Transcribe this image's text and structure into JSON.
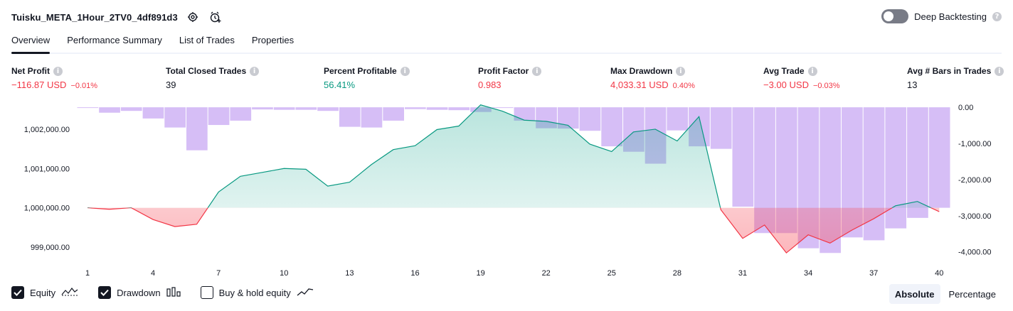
{
  "header": {
    "title": "Tuisku_META_1Hour_2TV0_4df891d3",
    "deep_backtesting_label": "Deep Backtesting",
    "deep_backtesting_enabled": false
  },
  "tabs": [
    {
      "label": "Overview",
      "active": true
    },
    {
      "label": "Performance Summary",
      "active": false
    },
    {
      "label": "List of Trades",
      "active": false
    },
    {
      "label": "Properties",
      "active": false
    }
  ],
  "stats": [
    {
      "label": "Net Profit",
      "value": "−116.87 USD",
      "sub": "−0.01%",
      "color": "#f23645"
    },
    {
      "label": "Total Closed Trades",
      "value": "39",
      "sub": "",
      "color": "#131722"
    },
    {
      "label": "Percent Profitable",
      "value": "56.41%",
      "sub": "",
      "color": "#089981"
    },
    {
      "label": "Profit Factor",
      "value": "0.983",
      "sub": "",
      "color": "#f23645"
    },
    {
      "label": "Max Drawdown",
      "value": "4,033.31 USD",
      "sub": "0.40%",
      "color": "#f23645"
    },
    {
      "label": "Avg Trade",
      "value": "−3.00 USD",
      "sub": "−0.03%",
      "color": "#f23645"
    },
    {
      "label": "Avg # Bars in Trades",
      "value": "13",
      "sub": "",
      "color": "#131722"
    }
  ],
  "chart_data": {
    "type": "area",
    "x_ticks": [
      "1",
      "4",
      "7",
      "10",
      "13",
      "16",
      "19",
      "22",
      "25",
      "28",
      "31",
      "34",
      "37",
      "40"
    ],
    "left_axis": {
      "ticks": [
        "1,002,000.00",
        "1,001,000.00",
        "1,000,000.00",
        "999,000.00"
      ],
      "range": [
        998600,
        1002650
      ]
    },
    "right_axis": {
      "ticks": [
        "0.00",
        "-1,000.00",
        "-2,000.00",
        "-3,000.00",
        "-4,000.00"
      ],
      "range": [
        -4300,
        100
      ]
    },
    "equity_baseline": 1000000,
    "equity": [
      [
        1,
        1000000
      ],
      [
        2,
        999960
      ],
      [
        3,
        1000000
      ],
      [
        4,
        999700
      ],
      [
        5,
        999520
      ],
      [
        6,
        999580
      ],
      [
        7,
        1000400
      ],
      [
        8,
        1000800
      ],
      [
        9,
        1000900
      ],
      [
        10,
        1001000
      ],
      [
        11,
        1000980
      ],
      [
        12,
        1000550
      ],
      [
        13,
        1000650
      ],
      [
        14,
        1001100
      ],
      [
        15,
        1001480
      ],
      [
        16,
        1001580
      ],
      [
        17,
        1001990
      ],
      [
        18,
        1002080
      ],
      [
        19,
        1002620
      ],
      [
        20,
        1002460
      ],
      [
        21,
        1002230
      ],
      [
        22,
        1002200
      ],
      [
        23,
        1002100
      ],
      [
        24,
        1001620
      ],
      [
        25,
        1001430
      ],
      [
        26,
        1001930
      ],
      [
        27,
        1002000
      ],
      [
        28,
        1001700
      ],
      [
        29,
        1002320
      ],
      [
        30,
        999950
      ],
      [
        31,
        999220
      ],
      [
        32,
        999560
      ],
      [
        33,
        998850
      ],
      [
        34,
        999310
      ],
      [
        35,
        999100
      ],
      [
        36,
        999430
      ],
      [
        37,
        999720
      ],
      [
        38,
        1000050
      ],
      [
        39,
        1000160
      ],
      [
        40,
        999900
      ]
    ],
    "drawdown": [
      0,
      -150,
      -100,
      -310,
      -560,
      -1190,
      -490,
      -370,
      -60,
      -70,
      -70,
      -100,
      -540,
      -560,
      -370,
      -50,
      -70,
      -80,
      -130,
      0,
      -370,
      -580,
      -590,
      -650,
      -1080,
      -1230,
      -1560,
      -640,
      -1080,
      -1150,
      -2750,
      -3480,
      -3480,
      -3900,
      -4030,
      -3600,
      -3680,
      -3350,
      -3060,
      -2780
    ],
    "colors": {
      "equity_up": "#089981",
      "equity_down": "#f23645",
      "equity_area": "#22ab94",
      "equity_area_down": "#f7525f",
      "drawdown": "#cfb3f5"
    }
  },
  "legend": [
    {
      "label": "Equity",
      "checked": true,
      "icon": "equity-line-icon"
    },
    {
      "label": "Drawdown",
      "checked": true,
      "icon": "drawdown-bars-icon"
    },
    {
      "label": "Buy & hold equity",
      "checked": false,
      "icon": "buy-hold-line-icon"
    }
  ],
  "view_modes": [
    {
      "label": "Absolute",
      "active": true
    },
    {
      "label": "Percentage",
      "active": false
    }
  ]
}
